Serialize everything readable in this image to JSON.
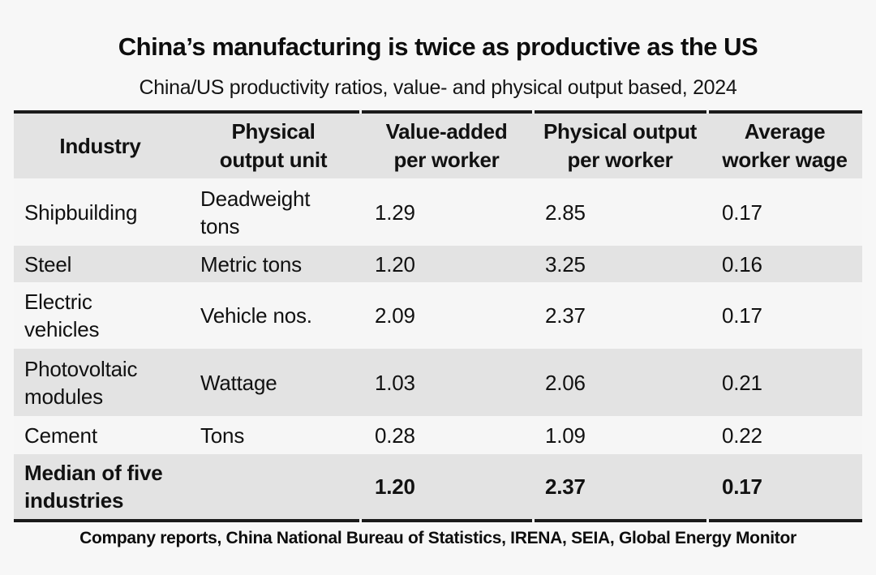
{
  "title": "China’s manufacturing is twice as productive as the US",
  "subtitle": "China/US productivity ratios, value- and physical output based, 2024",
  "source": "Company reports, China National Bureau of Statistics, IRENA, SEIA, Global Energy Monitor",
  "colors": {
    "background": "#f7f7f7",
    "row_shade": "#e3e3e3",
    "row_light": "#f6f6f6",
    "rule": "#1a1a1a",
    "text": "#111111"
  },
  "table": {
    "headers": [
      "Industry",
      "Physical\noutput unit",
      "Value-added\nper worker",
      "Physical output\nper worker",
      "Average\nworker wage"
    ],
    "rows": [
      {
        "industry": "Shipbuilding",
        "unit": "Deadweight\ntons",
        "value_added": "1.29",
        "physical_output": "2.85",
        "wage": "0.17"
      },
      {
        "industry": "Steel",
        "unit": "Metric tons",
        "value_added": "1.20",
        "physical_output": "3.25",
        "wage": "0.16"
      },
      {
        "industry": "Electric\nvehicles",
        "unit": "Vehicle nos.",
        "value_added": "2.09",
        "physical_output": "2.37",
        "wage": "0.17"
      },
      {
        "industry": "Photovoltaic\nmodules",
        "unit": "Wattage",
        "value_added": "1.03",
        "physical_output": "2.06",
        "wage": "0.21"
      },
      {
        "industry": "Cement",
        "unit": "Tons",
        "value_added": "0.28",
        "physical_output": "1.09",
        "wage": "0.22"
      }
    ],
    "summary_row": {
      "industry": "Median of five\nindustries",
      "unit": "",
      "value_added": "1.20",
      "physical_output": "2.37",
      "wage": "0.17"
    }
  },
  "chart_data": {
    "type": "table",
    "title": "China’s manufacturing is twice as productive as the US",
    "subtitle": "China/US productivity ratios, value- and physical output based, 2024",
    "columns": [
      "Industry",
      "Physical output unit",
      "Value-added per worker",
      "Physical output per worker",
      "Average worker wage"
    ],
    "rows": [
      [
        "Shipbuilding",
        "Deadweight tons",
        1.29,
        2.85,
        0.17
      ],
      [
        "Steel",
        "Metric tons",
        1.2,
        3.25,
        0.16
      ],
      [
        "Electric vehicles",
        "Vehicle nos.",
        2.09,
        2.37,
        0.17
      ],
      [
        "Photovoltaic modules",
        "Wattage",
        1.03,
        2.06,
        0.21
      ],
      [
        "Cement",
        "Tons",
        0.28,
        1.09,
        0.22
      ],
      [
        "Median of five industries",
        "",
        1.2,
        2.37,
        0.17
      ]
    ],
    "source": "Company reports, China National Bureau of Statistics, IRENA, SEIA, Global Energy Monitor",
    "layout_hints": {
      "shaded_rows": [
        "header",
        "Steel",
        "Photovoltaic modules",
        "Median of five industries"
      ],
      "thick_rules": "above header and below summary row"
    }
  }
}
